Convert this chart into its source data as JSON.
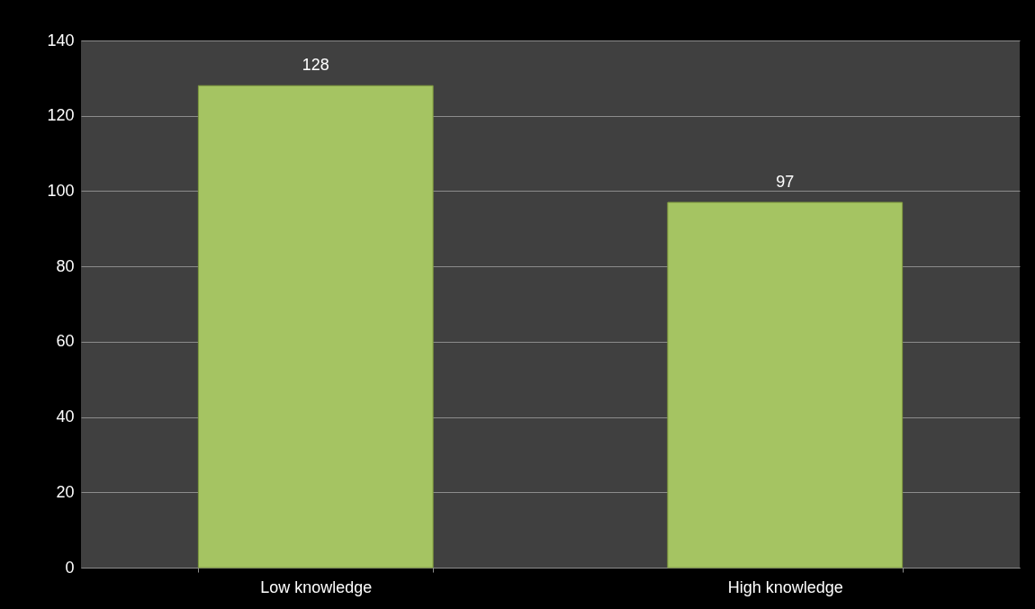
{
  "chart_data": {
    "type": "bar",
    "categories": [
      "Low knowledge",
      "High knowledge"
    ],
    "values": [
      128,
      97
    ],
    "color": "#a5c462",
    "ylim": [
      0,
      140
    ],
    "yticks": [
      0,
      20,
      40,
      60,
      80,
      100,
      120,
      140
    ],
    "grid": "y",
    "data_labels": true
  }
}
